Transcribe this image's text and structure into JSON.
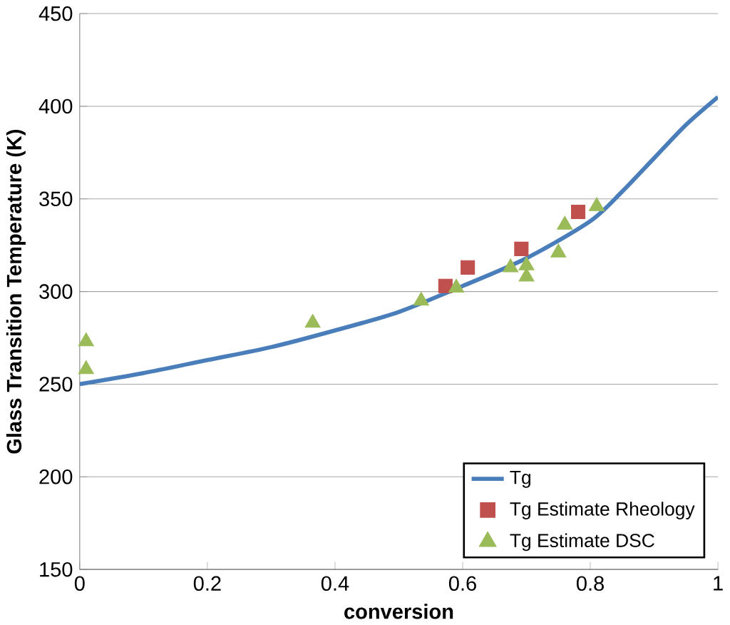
{
  "chart_data": {
    "type": "scatter",
    "xlabel": "conversion",
    "ylabel": "Glass Transition Temperature (K)",
    "xlim": [
      0,
      1
    ],
    "ylim": [
      150,
      450
    ],
    "xticks": [
      0,
      0.2,
      0.4,
      0.6,
      0.8,
      1
    ],
    "yticks": [
      150,
      200,
      250,
      300,
      350,
      400,
      450
    ],
    "grid": "y",
    "legend": "bottom right",
    "series": [
      {
        "name": "Tg",
        "type": "line",
        "marker": "none",
        "color": "#4a7ebb",
        "x": [
          0,
          0.1,
          0.2,
          0.3,
          0.4,
          0.5,
          0.6,
          0.7,
          0.8,
          0.85,
          0.9,
          0.95,
          1
        ],
        "values": [
          250,
          256,
          263,
          270,
          279,
          289,
          303,
          318,
          338,
          354,
          372,
          390,
          405
        ]
      },
      {
        "name": "Tg Estimate Rheology",
        "marker": "square",
        "color": "#c0504d",
        "x": [
          0.573,
          0.608,
          0.692,
          0.781
        ],
        "values": [
          303,
          313,
          323,
          343
        ]
      },
      {
        "name": "Tg Estimate DSC",
        "marker": "triangle",
        "color": "#9bbb59",
        "x": [
          0.01,
          0.01,
          0.365,
          0.535,
          0.59,
          0.675,
          0.7,
          0.7,
          0.75,
          0.76,
          0.81
        ],
        "values": [
          258,
          273,
          283,
          295,
          302,
          313,
          308,
          314,
          321,
          336,
          346
        ]
      }
    ]
  }
}
